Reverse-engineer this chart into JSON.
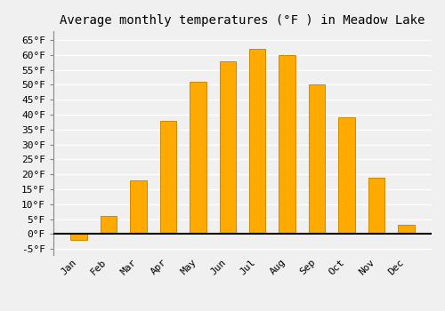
{
  "title": "Average monthly temperatures (°F ) in Meadow Lake",
  "months": [
    "Jan",
    "Feb",
    "Mar",
    "Apr",
    "May",
    "Jun",
    "Jul",
    "Aug",
    "Sep",
    "Oct",
    "Nov",
    "Dec"
  ],
  "values": [
    -2,
    6,
    18,
    38,
    51,
    58,
    62,
    60,
    50,
    39,
    19,
    3
  ],
  "bar_color": "#FFAA00",
  "bar_edge_color": "#CC8800",
  "ylim": [
    -7,
    68
  ],
  "yticks": [
    -5,
    0,
    5,
    10,
    15,
    20,
    25,
    30,
    35,
    40,
    45,
    50,
    55,
    60,
    65
  ],
  "ytick_labels": [
    "-5°F",
    "0°F",
    "5°F",
    "10°F",
    "15°F",
    "20°F",
    "25°F",
    "30°F",
    "35°F",
    "40°F",
    "45°F",
    "50°F",
    "55°F",
    "60°F",
    "65°F"
  ],
  "background_color": "#f0f0f0",
  "grid_color": "#ffffff",
  "title_fontsize": 10,
  "tick_fontsize": 8,
  "font_family": "monospace",
  "bar_width": 0.55
}
